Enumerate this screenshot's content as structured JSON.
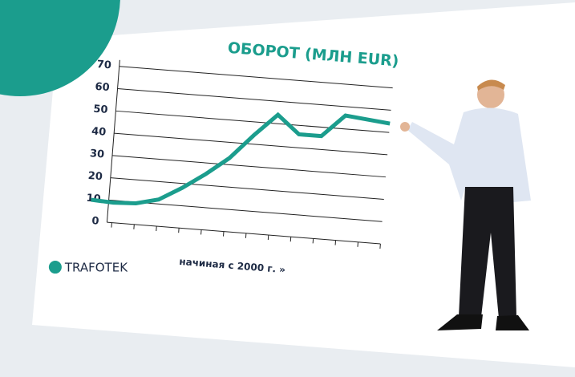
{
  "chart_data": {
    "type": "line",
    "title": "ОБОРОТ (МЛН EUR)",
    "x_label": "начиная с 2000 г. »",
    "categories": [
      null,
      null,
      null,
      null,
      null,
      null,
      null,
      null,
      null,
      null,
      null,
      null,
      null,
      null
    ],
    "values": [
      9.5,
      9,
      9.5,
      12,
      18,
      25,
      33,
      44,
      54,
      46,
      46,
      56,
      55,
      54
    ],
    "color": "#1b9d8d",
    "ylim": [
      0,
      70
    ],
    "yticks": [
      0,
      10,
      20,
      30,
      40,
      50,
      60,
      70
    ],
    "grid": true
  },
  "logo": "TRAFOTEK"
}
